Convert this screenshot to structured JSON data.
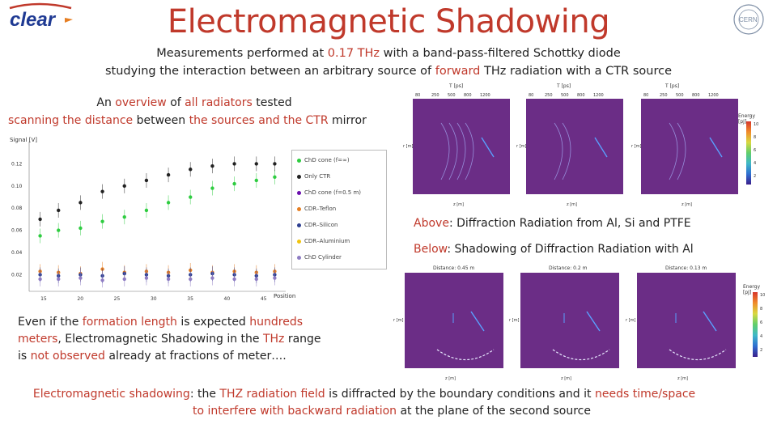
{
  "header": {
    "logo_text": "clear",
    "title": "Electromagnetic Shadowing",
    "subtitle_line1": {
      "a": "Measurements performed at ",
      "b": "0.17 THz",
      "c": " with a band-pass-filtered Schottky diode"
    },
    "subtitle_line2": {
      "a": "studying the interaction between an arbitrary source of ",
      "b": "forward",
      "c": " THz radiation with a CTR source"
    }
  },
  "overview": {
    "line1": {
      "a": "An ",
      "b": "overview",
      "c": " of ",
      "d": "all radiators",
      "e": " tested"
    },
    "line2": {
      "a": "scanning the distance",
      "b": " between ",
      "c": "the sources and the CTR",
      "d": " mirror"
    }
  },
  "scatter": {
    "ylabel": "Signal [V]",
    "xlabel": "Position",
    "yticks": [
      "0.02",
      "0.04",
      "0.06",
      "0.08",
      "0.10",
      "0.12"
    ],
    "xticks": [
      "15",
      "20",
      "25",
      "30",
      "35",
      "40",
      "45"
    ],
    "legend": [
      {
        "label": "ChD cone (f=∞)",
        "color": "#2ecc40"
      },
      {
        "label": "Only CTR",
        "color": "#222222"
      },
      {
        "label": "ChD cone (f=0.5 m)",
        "color": "#6a0dad"
      },
      {
        "label": "CDR–Teflon",
        "color": "#e67e22"
      },
      {
        "label": "CDR–Silicon",
        "color": "#2c3e90"
      },
      {
        "label": "CDR–Aluminium",
        "color": "#f1c40f"
      },
      {
        "label": "ChD Cylinder",
        "color": "#8e7cc3"
      }
    ]
  },
  "chart_data": {
    "type": "scatter",
    "xlabel": "Position",
    "ylabel": "Signal [V]",
    "xlim": [
      13,
      48
    ],
    "ylim": [
      0.005,
      0.14
    ],
    "series": [
      {
        "name": "ChD cone (f=∞)",
        "x": [
          14.5,
          17,
          20,
          23,
          26,
          29,
          32,
          35,
          38,
          41,
          44,
          46.5
        ],
        "y": [
          0.055,
          0.06,
          0.062,
          0.068,
          0.072,
          0.078,
          0.085,
          0.09,
          0.098,
          0.102,
          0.105,
          0.108
        ]
      },
      {
        "name": "Only CTR",
        "x": [
          14.5,
          17,
          20,
          23,
          26,
          29,
          32,
          35,
          38,
          41,
          44,
          46.5
        ],
        "y": [
          0.07,
          0.078,
          0.085,
          0.095,
          0.1,
          0.105,
          0.11,
          0.115,
          0.118,
          0.12,
          0.12,
          0.12
        ]
      },
      {
        "name": "CDR–Teflon",
        "x": [
          14.5,
          17,
          20,
          23,
          26,
          29,
          32,
          35,
          38,
          41,
          44,
          46.5
        ],
        "y": [
          0.023,
          0.022,
          0.021,
          0.025,
          0.022,
          0.023,
          0.022,
          0.024,
          0.022,
          0.023,
          0.022,
          0.023
        ]
      },
      {
        "name": "CDR–Silicon",
        "x": [
          14.5,
          17,
          20,
          23,
          26,
          29,
          32,
          35,
          38,
          41,
          44,
          46.5
        ],
        "y": [
          0.02,
          0.019,
          0.02,
          0.019,
          0.021,
          0.02,
          0.019,
          0.02,
          0.021,
          0.02,
          0.019,
          0.02
        ]
      },
      {
        "name": "ChD Cylinder",
        "x": [
          14.5,
          17,
          20,
          23,
          26,
          29,
          32,
          35,
          38,
          41,
          44,
          46.5
        ],
        "y": [
          0.016,
          0.016,
          0.017,
          0.015,
          0.016,
          0.017,
          0.016,
          0.016,
          0.017,
          0.016,
          0.016,
          0.017
        ]
      }
    ]
  },
  "top_panels": {
    "axis_title": "T [ps]",
    "ticks": [
      "80",
      "250",
      "500",
      "800",
      "1200"
    ],
    "xlabel": "z [m]",
    "ylabel": "r [m]",
    "colorbar_label": "Energy [pJ]",
    "colorbar_ticks": [
      "10",
      "8",
      "6",
      "4",
      "2"
    ]
  },
  "above": {
    "a": "Above",
    "b": ": Diffraction Radiation from Al, Si and PTFE"
  },
  "below_caption": {
    "a": "Below",
    "b": ": Shadowing of Diffraction Radiation with Al"
  },
  "bottom_panels": {
    "titles": [
      "Distance: 0.45 m",
      "Distance: 0.2 m",
      "Distance: 0.13 m"
    ],
    "xlabel": "z [m]",
    "ylabel": "r [m]",
    "colorbar_label": "Energy [pJ]",
    "colorbar_ticks": [
      "10",
      "8",
      "6",
      "4",
      "2"
    ]
  },
  "formation": {
    "l1": {
      "a": "Even if the ",
      "b": "formation length",
      "c": " is expected ",
      "d": "hundreds"
    },
    "l2": {
      "a": "meters",
      "b": ", Electromagnetic Shadowing in the ",
      "c": "THz",
      "d": " range"
    },
    "l3": {
      "a": "is ",
      "b": "not observed",
      "c": " already at fractions of meter…."
    }
  },
  "footer": {
    "l1": {
      "a": "Electromagnetic shadowing",
      "b": ": the ",
      "c": "THZ radiation field",
      "d": " is diffracted by the boundary conditions and it ",
      "e": "needs time/space"
    },
    "l2": {
      "a": "to interfere with backward radiation",
      "b": " at the plane of the second source"
    }
  },
  "colors": {
    "accent": "#c0392b",
    "panel": "#6b2d86"
  }
}
